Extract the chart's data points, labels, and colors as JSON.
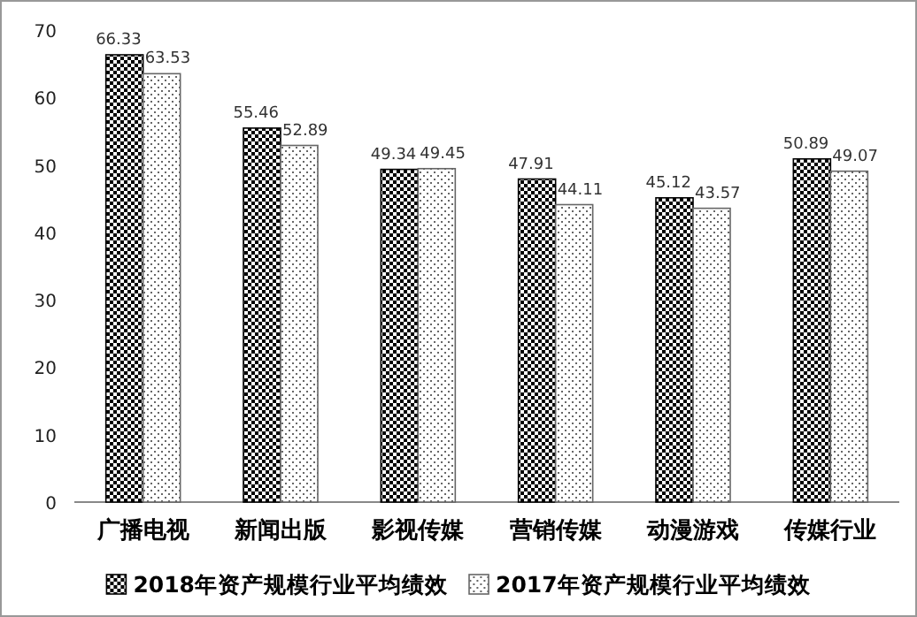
{
  "chart_data": {
    "type": "bar",
    "categories": [
      "广播电视",
      "新闻出版",
      "影视传媒",
      "营销传媒",
      "动漫游戏",
      "传媒行业"
    ],
    "series": [
      {
        "name": "2018年资产规模行业平均绩效",
        "color": "#000000",
        "values": [
          66.33,
          55.46,
          49.34,
          47.91,
          45.12,
          50.89
        ]
      },
      {
        "name": "2017年资产规模行业平均绩效",
        "color": "#666666",
        "values": [
          63.53,
          52.89,
          49.45,
          44.11,
          43.57,
          49.07
        ]
      }
    ],
    "ylim": [
      0,
      70
    ],
    "yticks": [
      0,
      10,
      20,
      30,
      40,
      50,
      60,
      70
    ],
    "data_labels": true,
    "legend": "bottom",
    "grid": false
  }
}
